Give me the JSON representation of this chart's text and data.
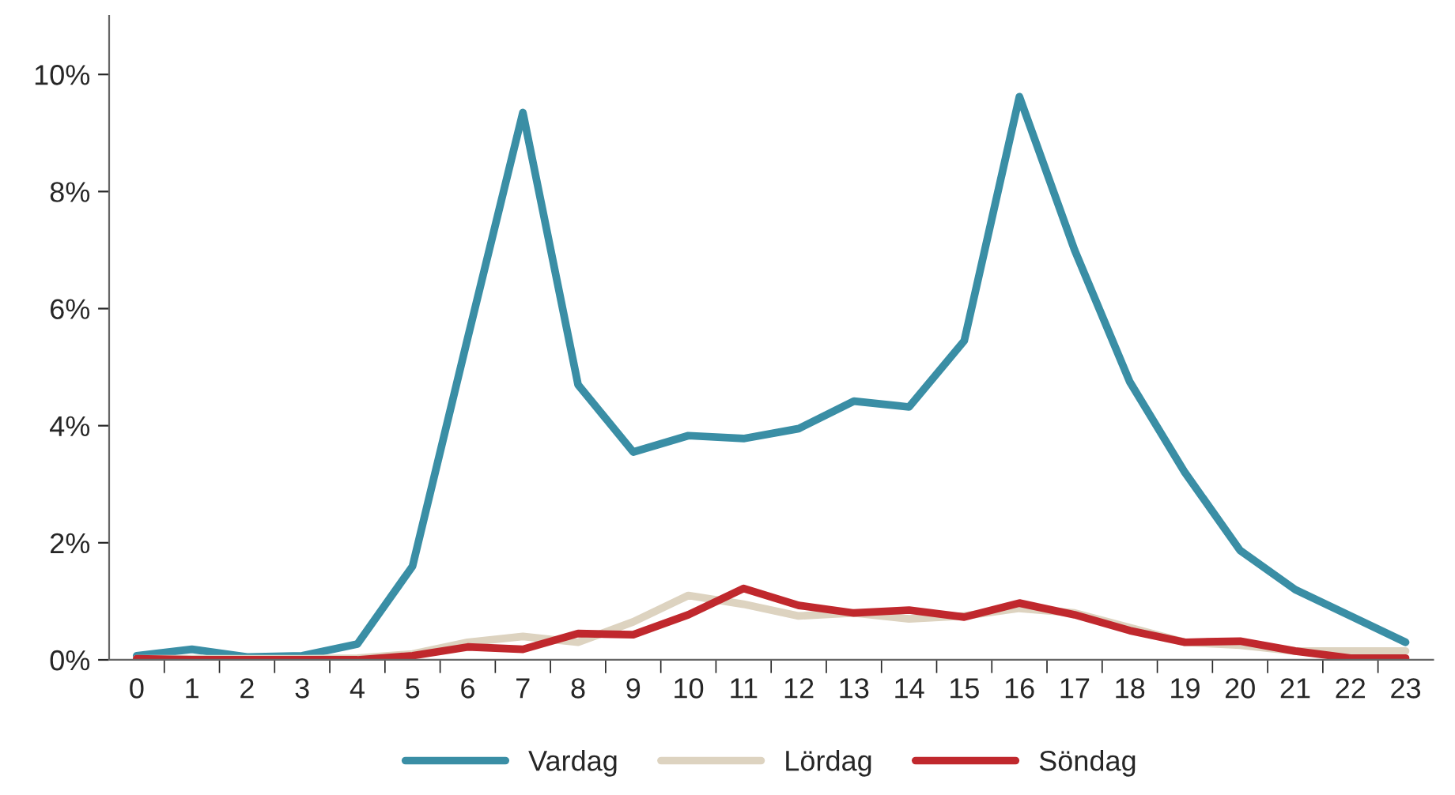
{
  "chart_data": {
    "type": "line",
    "categories": [
      "0",
      "1",
      "2",
      "3",
      "4",
      "5",
      "6",
      "7",
      "8",
      "9",
      "10",
      "11",
      "12",
      "13",
      "14",
      "15",
      "16",
      "17",
      "18",
      "19",
      "20",
      "21",
      "22",
      "23"
    ],
    "series": [
      {
        "name": "Vardag",
        "color": "#3a8ea5",
        "values": [
          0.07,
          0.18,
          0.05,
          0.07,
          0.27,
          1.6,
          5.5,
          9.35,
          4.7,
          3.55,
          3.83,
          3.78,
          3.95,
          4.42,
          4.32,
          5.45,
          9.62,
          7.0,
          4.75,
          3.2,
          1.87,
          1.2,
          0.75,
          0.3
        ]
      },
      {
        "name": "Lördag",
        "color": "#ddd3c0",
        "values": [
          0.02,
          0.02,
          0.02,
          0.02,
          0.03,
          0.1,
          0.3,
          0.4,
          0.3,
          0.65,
          1.1,
          0.95,
          0.75,
          0.8,
          0.7,
          0.75,
          0.88,
          0.8,
          0.55,
          0.3,
          0.25,
          0.15,
          0.15,
          0.15
        ]
      },
      {
        "name": "Söndag",
        "color": "#c0282d",
        "values": [
          0.02,
          0.0,
          0.0,
          0.0,
          0.0,
          0.07,
          0.22,
          0.18,
          0.45,
          0.43,
          0.77,
          1.22,
          0.93,
          0.8,
          0.85,
          0.73,
          0.97,
          0.77,
          0.5,
          0.3,
          0.32,
          0.15,
          0.03,
          0.03
        ]
      }
    ],
    "ylim": [
      0,
      11
    ],
    "yticks": [
      {
        "value": 0,
        "label": "0%"
      },
      {
        "value": 2,
        "label": "2%"
      },
      {
        "value": 4,
        "label": "4%"
      },
      {
        "value": 6,
        "label": "6%"
      },
      {
        "value": 8,
        "label": "8%"
      },
      {
        "value": 10,
        "label": "10%"
      }
    ],
    "legend": "bottom",
    "grid": false,
    "marker": "none",
    "line_style": "solid"
  }
}
